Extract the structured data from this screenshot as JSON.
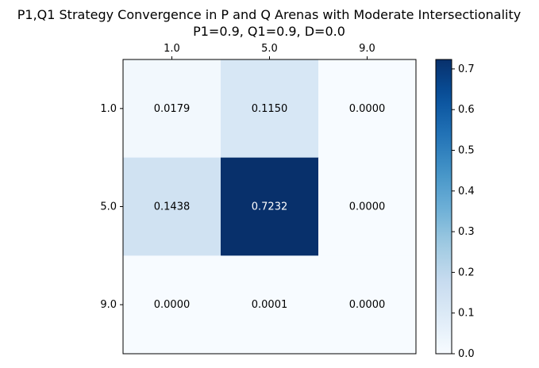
{
  "chart_data": {
    "type": "heatmap",
    "title": "P1,Q1 Strategy Convergence in P and Q Arenas with Moderate Intersectionality",
    "subtitle": "P1=0.9, Q1=0.9, D=0.0",
    "x_categories": [
      "1.0",
      "5.0",
      "9.0"
    ],
    "y_categories": [
      "1.0",
      "5.0",
      "9.0"
    ],
    "values": [
      [
        0.0179,
        0.115,
        0.0
      ],
      [
        0.1438,
        0.7232,
        0.0
      ],
      [
        0.0,
        0.0001,
        0.0
      ]
    ],
    "cell_labels": [
      [
        "0.0179",
        "0.1150",
        "0.0000"
      ],
      [
        "0.1438",
        "0.7232",
        "0.0000"
      ],
      [
        "0.0000",
        "0.0001",
        "0.0000"
      ]
    ],
    "colormap": "Blues",
    "colorbar": {
      "min": 0.0,
      "max": 0.7232,
      "ticks": [
        0.0,
        0.1,
        0.2,
        0.3,
        0.4,
        0.5,
        0.6,
        0.7
      ],
      "tick_labels": [
        "0.0",
        "0.1",
        "0.2",
        "0.3",
        "0.4",
        "0.5",
        "0.6",
        "0.7"
      ]
    },
    "x_axis_position": "top",
    "grid": false
  }
}
